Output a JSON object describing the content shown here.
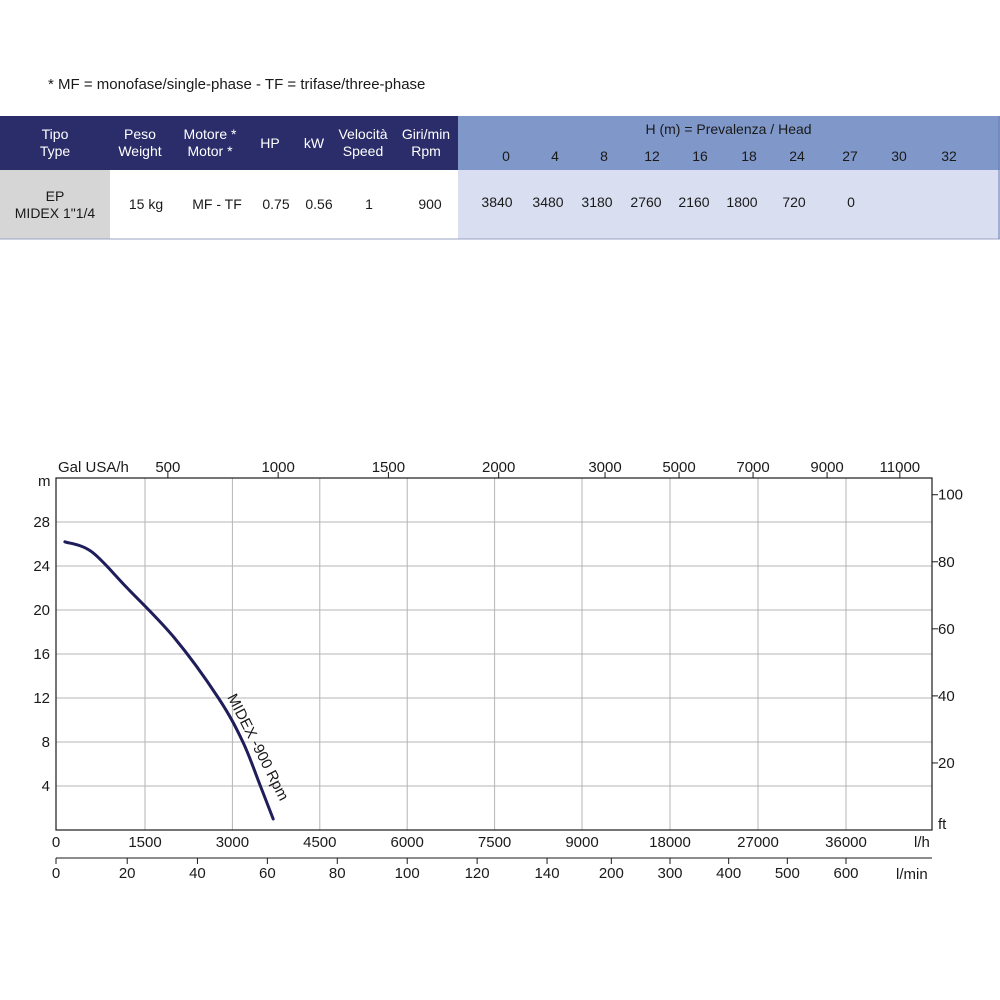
{
  "note": "* MF = monofase/single-phase - TF = trifase/three-phase",
  "table": {
    "headers": {
      "tipo": [
        "Tipo",
        "Type"
      ],
      "peso": [
        "Peso",
        "Weight"
      ],
      "motore": [
        "Motore *",
        "Motor *"
      ],
      "hp": "HP",
      "kw": "kW",
      "velocita": [
        "Velocità",
        "Speed"
      ],
      "giri": [
        "Giri/min",
        "Rpm"
      ],
      "head_title": "H (m) = Prevalenza /  Head"
    },
    "heads": [
      "0",
      "4",
      "8",
      "12",
      "16",
      "18",
      "24",
      "27",
      "30",
      "32"
    ],
    "row": {
      "tipo": [
        "EP",
        "MIDEX 1\"1/4"
      ],
      "peso": "15 kg",
      "motore": "MF - TF",
      "hp": "0.75",
      "kw": "0.56",
      "velocita": "1",
      "giri": "900",
      "flows": [
        "3840",
        "3480",
        "3180",
        "2760",
        "2160",
        "1800",
        "720",
        "0",
        "",
        ""
      ]
    },
    "colors": {
      "header_dark": "#2a2d6a",
      "header_light": "#7f97c9",
      "row_grey": "#d6d6d6",
      "row_light": "#d9def0"
    }
  },
  "chart_data": {
    "type": "line",
    "axis_labels": {
      "left_unit": "m",
      "right_unit": "ft",
      "top_unit": "Gal USA/h",
      "bottom_unit": "l/h",
      "bottom2_unit": "l/min"
    },
    "y_left_ticks": [
      "4",
      "8",
      "12",
      "16",
      "20",
      "24",
      "28"
    ],
    "y_left_range": [
      0,
      32
    ],
    "y_right_ticks": [
      "20",
      "40",
      "60",
      "80",
      "100"
    ],
    "x_lh_ticks": [
      "0",
      "1500",
      "3000",
      "4500",
      "6000",
      "7500",
      "9000",
      "18000",
      "27000",
      "36000"
    ],
    "x_lmin_ticks": [
      "0",
      "20",
      "40",
      "60",
      "80",
      "100",
      "120",
      "140",
      "200",
      "300",
      "400",
      "500",
      "600"
    ],
    "x_gal_ticks": [
      "500",
      "1000",
      "1500",
      "2000",
      "3000",
      "5000",
      "7000",
      "9000",
      "11000"
    ],
    "series": [
      {
        "name": "MIDEX -900 Rpm",
        "color": "#1f1d5a",
        "points": [
          [
            150,
            26.2
          ],
          [
            600,
            25.3
          ],
          [
            1200,
            22.0
          ],
          [
            2000,
            17.5
          ],
          [
            2760,
            12
          ],
          [
            3180,
            8
          ],
          [
            3480,
            4
          ],
          [
            3700,
            1
          ]
        ]
      }
    ]
  }
}
